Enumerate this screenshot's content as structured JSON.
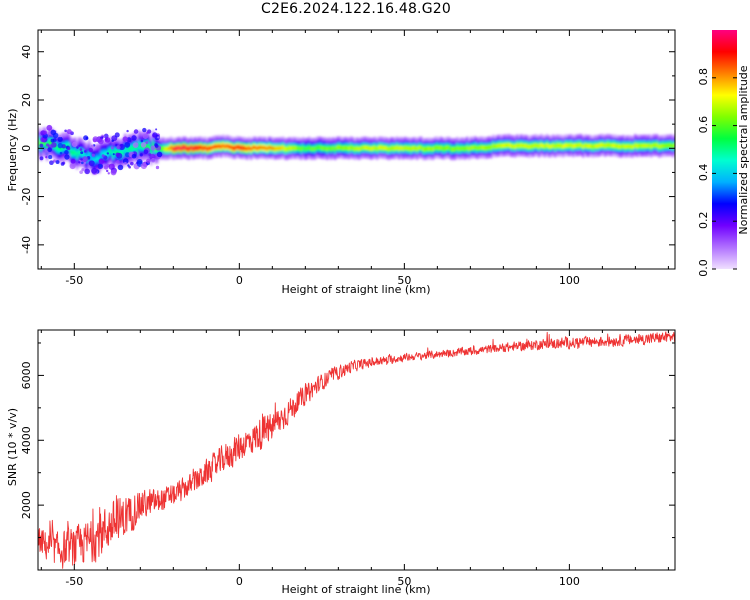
{
  "figure": {
    "title": "C2E6.2024.122.16.48.G20"
  },
  "colors": {
    "snr_line": "#ee3333",
    "axes": "#000000",
    "colormap": [
      "#f0e0ff",
      "#b070ff",
      "#7000ff",
      "#0000ff",
      "#00b0ff",
      "#00ffd0",
      "#00ff40",
      "#80ff00",
      "#ffff00",
      "#ff8000",
      "#ff0000",
      "#ff0080"
    ]
  },
  "chart_data": [
    {
      "type": "heatmap",
      "title": "",
      "xlabel": "Height of straight line (km)",
      "ylabel": "Frequency (Hz)",
      "xlim": [
        -61,
        132
      ],
      "ylim": [
        -50,
        49
      ],
      "xticks": [
        -50,
        0,
        50,
        100
      ],
      "xtick_labels": [
        "-50",
        "0",
        "50",
        "100"
      ],
      "yticks": [
        -40,
        -20,
        0,
        20,
        40
      ],
      "ytick_labels": [
        "-40",
        "-20",
        "0",
        "20",
        "40"
      ],
      "colorbar": {
        "label": "Normalized spectral amplitude",
        "range": [
          0,
          1
        ],
        "ticks": [
          0.0,
          0.2,
          0.4,
          0.6,
          0.8
        ],
        "tick_labels": [
          "0.0",
          "0.2",
          "0.4",
          "0.6",
          "0.8"
        ]
      },
      "ridge": {
        "x": [
          -61,
          -57,
          -53,
          -50,
          -47,
          -44,
          -41,
          -38,
          -35,
          -32,
          -28,
          -24,
          -20,
          -15,
          -10,
          -5,
          0,
          5,
          10,
          20,
          30,
          40,
          50,
          60,
          70,
          80,
          90,
          100,
          110,
          120,
          132
        ],
        "y": [
          2,
          1,
          0,
          -1,
          -3,
          -4,
          -3,
          -2,
          -1,
          0,
          0,
          0,
          0,
          0,
          0,
          1,
          0,
          0,
          0,
          0,
          0,
          0,
          0,
          0,
          0,
          1,
          1,
          1,
          1,
          1,
          1
        ],
        "amplitude": [
          0.6,
          0.55,
          0.5,
          0.5,
          0.45,
          0.4,
          0.45,
          0.5,
          0.5,
          0.5,
          0.55,
          0.6,
          0.95,
          0.95,
          0.9,
          0.85,
          0.9,
          0.85,
          0.8,
          0.6,
          0.65,
          0.7,
          0.7,
          0.65,
          0.65,
          0.7,
          0.7,
          0.7,
          0.7,
          0.7,
          0.65
        ]
      }
    },
    {
      "type": "line",
      "title": "",
      "xlabel": "Height of straight line (km)",
      "ylabel": "SNR (10 * v/v)",
      "xlim": [
        -61,
        132
      ],
      "ylim": [
        0,
        7400
      ],
      "xticks": [
        -50,
        0,
        50,
        100
      ],
      "xtick_labels": [
        "-50",
        "0",
        "50",
        "100"
      ],
      "yticks": [
        2000,
        4000,
        6000
      ],
      "ytick_labels": [
        "2000",
        "4000",
        "6000"
      ],
      "series": [
        {
          "x": [
            -61,
            -55,
            -50,
            -45,
            -40,
            -35,
            -30,
            -25,
            -20,
            -15,
            -10,
            -5,
            0,
            5,
            10,
            15,
            20,
            25,
            30,
            35,
            40,
            50,
            60,
            70,
            80,
            90,
            100,
            110,
            120,
            132
          ],
          "values": [
            900,
            600,
            700,
            900,
            1300,
            1600,
            2000,
            2100,
            2300,
            2600,
            3000,
            3400,
            3800,
            4100,
            4400,
            4900,
            5400,
            5800,
            6100,
            6300,
            6400,
            6550,
            6650,
            6750,
            6850,
            6950,
            7000,
            7050,
            7100,
            7200
          ],
          "noise": [
            500,
            650,
            700,
            800,
            850,
            800,
            550,
            450,
            400,
            400,
            450,
            500,
            550,
            550,
            550,
            450,
            350,
            300,
            250,
            200,
            170,
            140,
            140,
            150,
            160,
            180,
            200,
            200,
            200,
            200
          ]
        }
      ]
    }
  ]
}
